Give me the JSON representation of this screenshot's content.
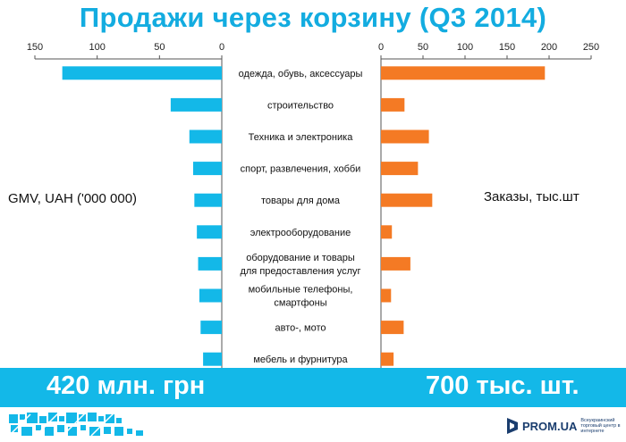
{
  "title": "Продажи через корзину (Q3 2014)",
  "left_axis_title": "GMV,  UAH ('000 000)",
  "right_axis_title": "Заказы,  тыс.шт",
  "banner": {
    "left": "420 млн. грн",
    "right": "700 тыс. шт."
  },
  "footer": {
    "brand": "PROM.UA",
    "tagline": "Всеукраинский торговый центр в интернете"
  },
  "colors": {
    "title": "#13ace0",
    "gmv_bar": "#13b8e8",
    "orders_bar": "#f47a24",
    "banner": "#13b8e8"
  },
  "chart_data": {
    "type": "bar",
    "orientation": "horizontal",
    "categories": [
      [
        "одежда, обувь, аксессуары"
      ],
      [
        "строительство"
      ],
      [
        "Техника и электроника"
      ],
      [
        "спорт, развлечения, хобби"
      ],
      [
        "товары для дома"
      ],
      [
        "электрооборудование"
      ],
      [
        "оборудование и товары",
        "для предоставления услуг"
      ],
      [
        "мобильные телефоны,",
        "смартфоны"
      ],
      [
        "авто-, мото"
      ],
      [
        "мебель и фурнитура"
      ]
    ],
    "left_chart": {
      "values": [
        128,
        41,
        26,
        23,
        22,
        20,
        19,
        18,
        17,
        15
      ],
      "xlim": [
        150,
        0
      ],
      "ticks": [
        "150",
        "100",
        "50",
        "0"
      ]
    },
    "right_chart": {
      "values": [
        195,
        28,
        57,
        44,
        61,
        13,
        35,
        12,
        27,
        15
      ],
      "xlim": [
        0,
        250
      ],
      "ticks": [
        "0",
        "50",
        "100",
        "150",
        "200",
        "250"
      ]
    }
  }
}
